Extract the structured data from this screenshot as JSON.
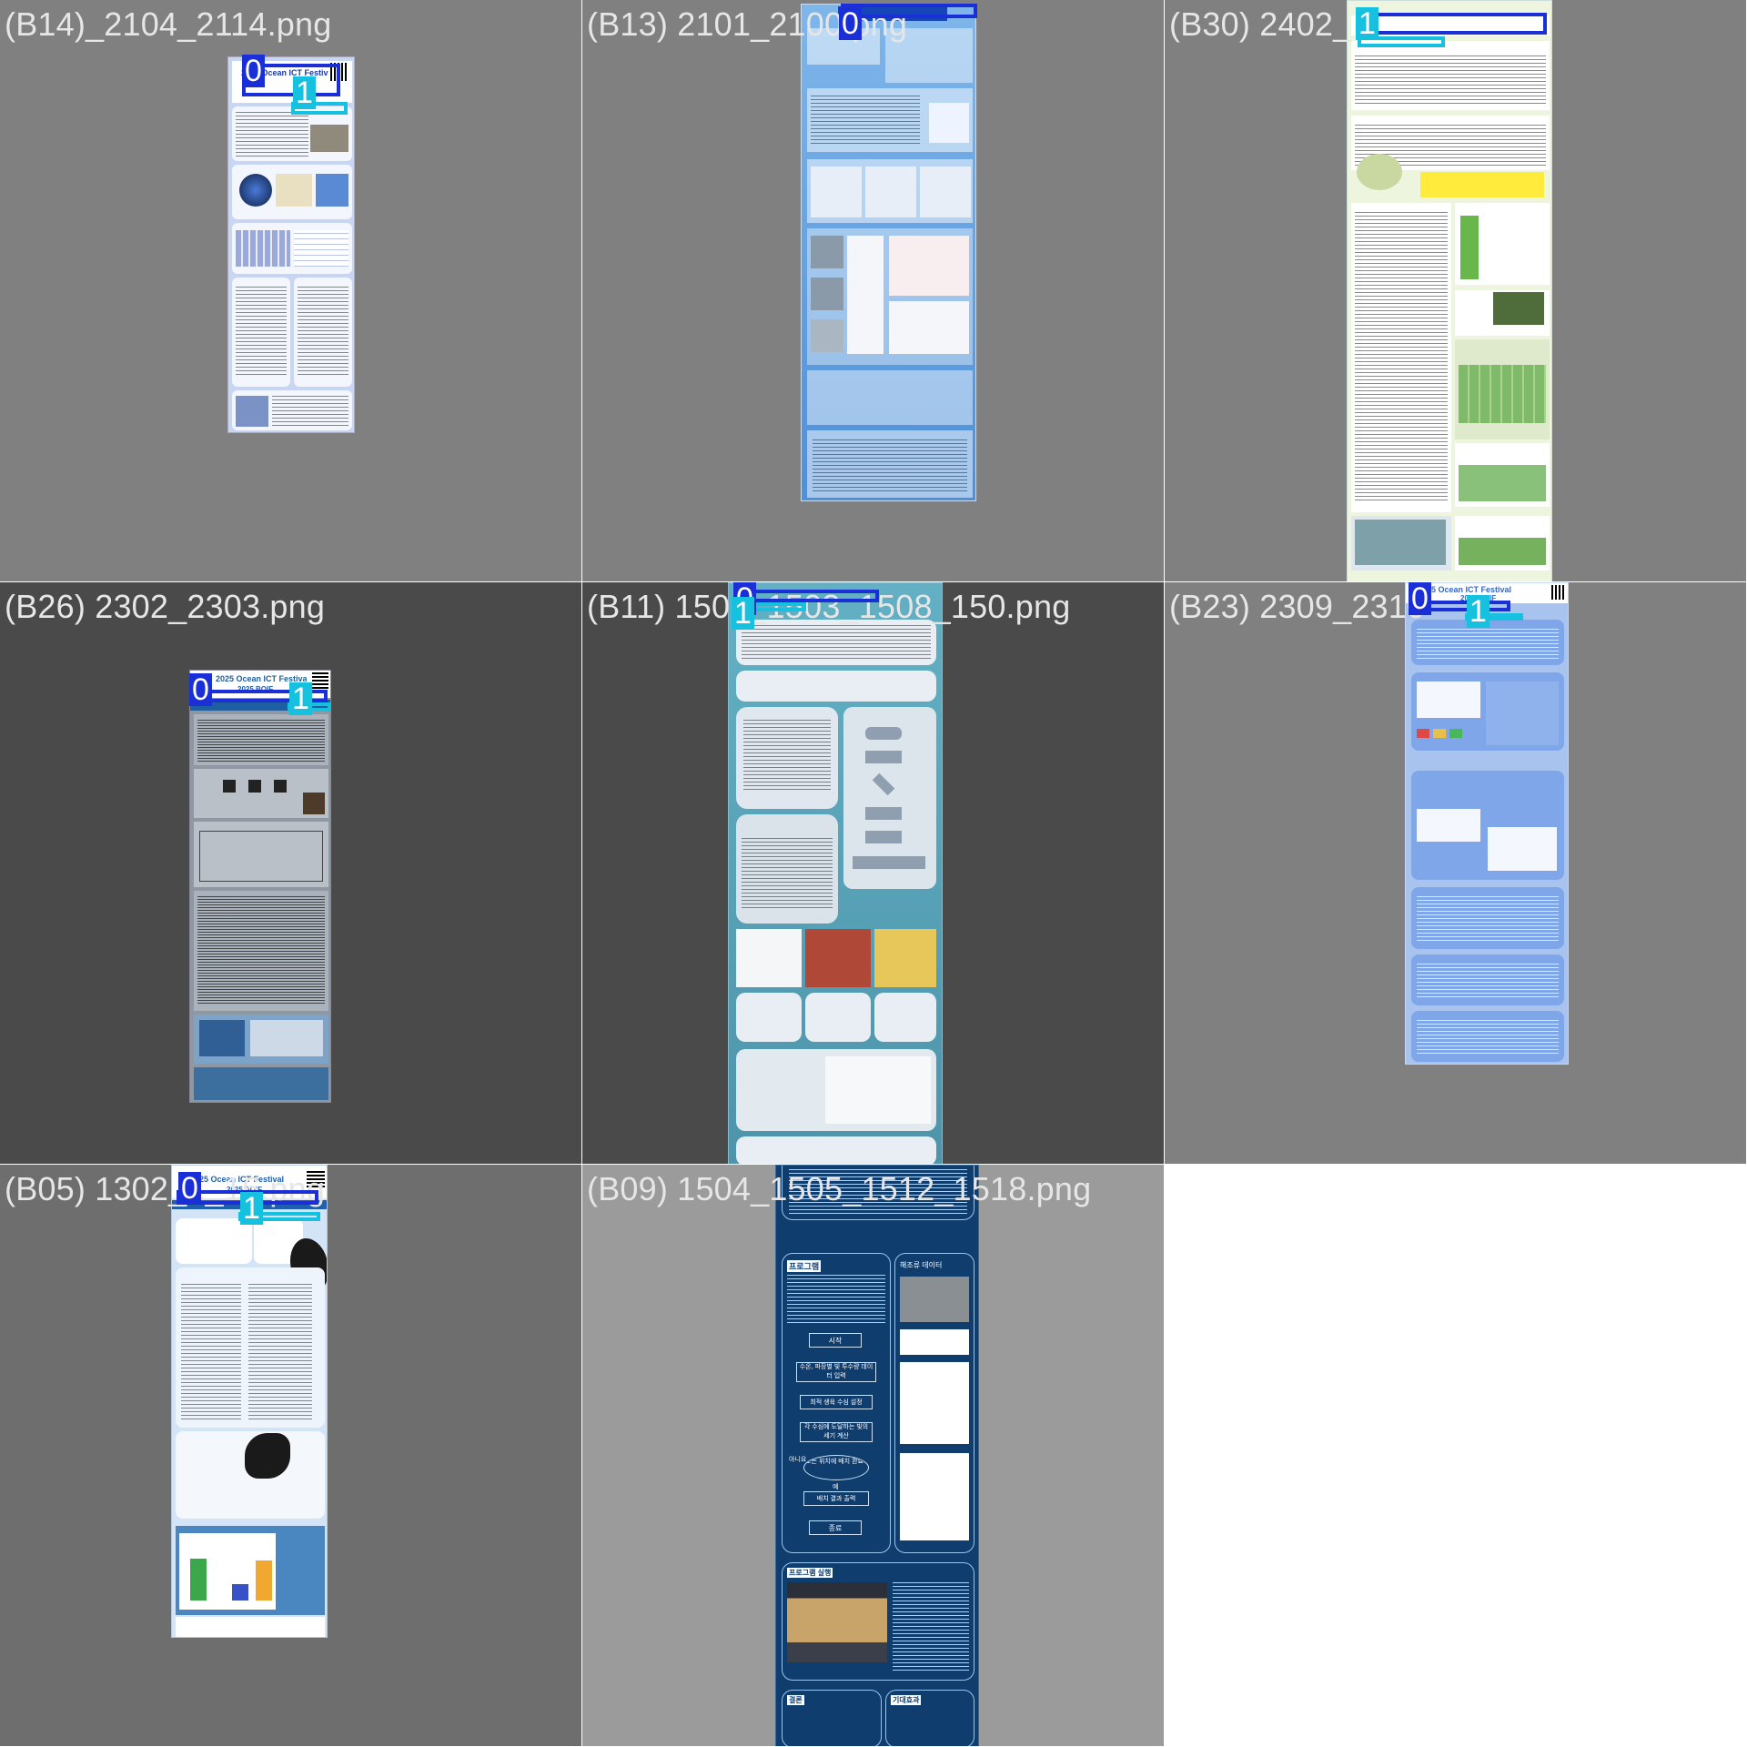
{
  "cells": [
    {
      "label": "(B14)_2104_2114.png",
      "bg": "#808080",
      "poster_bg": "#c8d6f4",
      "accent": "#1a3aa8"
    },
    {
      "label": "(B13) 2101_2100.png",
      "bg": "#808080",
      "poster_bg": "#6aa8e6",
      "accent": "#1546b8"
    },
    {
      "label": "(B30) 2402_",
      "bg": "#808080",
      "poster_bg": "#eef5df",
      "accent": "#4c8f2a"
    },
    {
      "label": "(B26) 2302_2303.png",
      "bg": "#4a4a4a",
      "poster_bg": "#9aa3ad",
      "accent": "#1d5fa0"
    },
    {
      "label": "(B11) 1501_1503_1508_150.png",
      "bg": "#4a4a4a",
      "poster_bg": "#5fa9bd",
      "accent": "#2d6c8c"
    },
    {
      "label": "(B23) 2309_2310",
      "bg": "#808080",
      "poster_bg": "#a9c3ef",
      "accent": "#3466c8"
    },
    {
      "label": "(B05) 1302_1_16.png",
      "bg": "#6e6e6e",
      "poster_bg": "#d3e4f6",
      "accent": "#1e5fae"
    },
    {
      "label": "(B09) 1504_1505_1512_1518.png",
      "bg": "#9b9b9b",
      "poster_bg": "#0f3d6e",
      "accent": "#4a88c4"
    }
  ],
  "badges": {
    "zero": "0",
    "one": "1"
  },
  "posters": {
    "b14": {
      "title": "2025 Ocean ICT Festival"
    },
    "b26": {
      "title": "2025 Ocean ICT Festival",
      "subtitle": "2025 BOIF"
    },
    "b23": {
      "title": "5 Ocean ICT Festival",
      "subtitle": "2025 BOIF"
    },
    "b05": {
      "title": "2025 Ocean ICT Festival",
      "subtitle": "2025 BOIF"
    },
    "b09": {
      "program_section": "프로그램",
      "data_section": "해조류 데이터",
      "flow": [
        "시작",
        "수온, 파장별 빛 투수량 데이터 입력",
        "최적 생육 수심 설정",
        "각 수심에 도달하는 빛의 세기 계산",
        "모든 위치에 배치 완료?",
        "배치 결과 출력",
        "종료"
      ],
      "flow_no": "아니요",
      "flow_yes": "예",
      "demo_section": "프로그램 실행",
      "conclusion": "결론",
      "future": "기대효과"
    }
  }
}
